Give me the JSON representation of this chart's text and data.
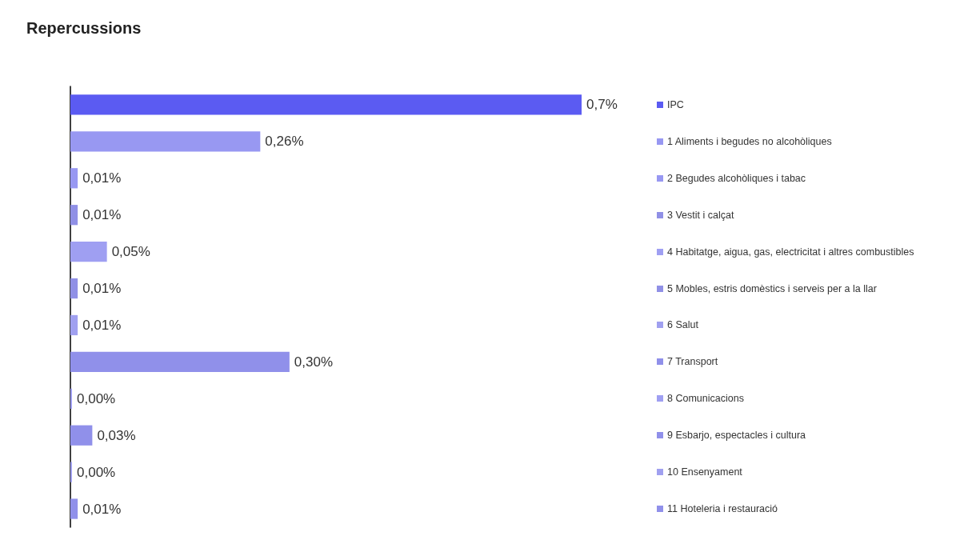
{
  "chart_data": {
    "type": "bar",
    "orientation": "horizontal",
    "title": "Repercussions",
    "categories": [
      "IPC",
      "1 Aliments i begudes no alcohòliques",
      "2 Begudes alcohòliques i tabac",
      "3 Vestit i calçat",
      "4 Habitatge, aigua, gas, electricitat i altres combustibles",
      "5 Mobles, estris domèstics i serveis per a la llar",
      "6 Salut",
      "7 Transport",
      "8 Comunicacions",
      "9 Esbarjo, espectacles i cultura",
      "10 Ensenyament",
      "11 Hoteleria i restauració"
    ],
    "values": [
      0.7,
      0.26,
      0.01,
      0.01,
      0.05,
      0.01,
      0.01,
      0.3,
      0.0,
      0.03,
      0.0,
      0.01
    ],
    "value_labels": [
      "0,7%",
      "0,26%",
      "0,01%",
      "0,01%",
      "0,05%",
      "0,01%",
      "0,01%",
      "0,30%",
      "0,00%",
      "0,03%",
      "0,00%",
      "0,01%"
    ],
    "colors": [
      "#5b5bf2",
      "#9898f2",
      "#9898f2",
      "#9090e6",
      "#9f9ff2",
      "#9090e6",
      "#a0a0f0",
      "#9090ea",
      "#9f9ff2",
      "#9090ea",
      "#a0a0f0",
      "#9090ea"
    ],
    "tick_labels": "y"
  }
}
